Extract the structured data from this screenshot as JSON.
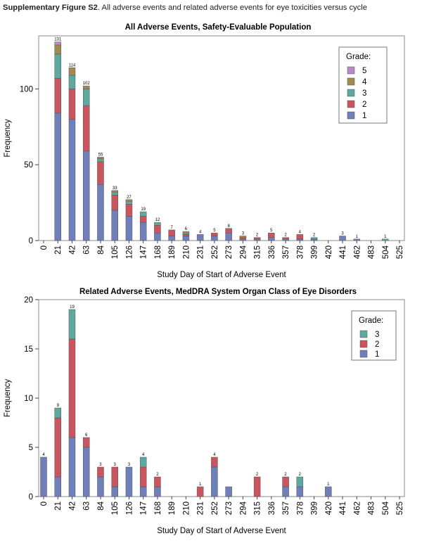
{
  "caption": {
    "label": "Supplementary Figure S2",
    "text": ". All adverse events and related adverse events for eye toxicities versus cycle"
  },
  "colors": {
    "grade1": "#6f7fba",
    "grade2": "#c9555e",
    "grade3": "#5fa8a0",
    "grade4": "#a38a52",
    "grade5": "#b98ac6"
  },
  "chart_data": [
    {
      "type": "bar",
      "stacked": true,
      "title": "All Adverse Events, Safety-Evaluable Population",
      "xlabel": "Study Day of Start of Adverse Event",
      "ylabel": "Frequency",
      "ylim": [
        0,
        135
      ],
      "yticks": [
        0,
        50,
        100
      ],
      "xticks": [
        "0",
        "21",
        "42",
        "63",
        "84",
        "105",
        "126",
        "147",
        "168",
        "189",
        "210",
        "231",
        "252",
        "273",
        "294",
        "315",
        "336",
        "357",
        "378",
        "399",
        "420",
        "441",
        "462",
        "483",
        "504",
        "525"
      ],
      "legend": {
        "title": "Grade:",
        "position": "top-right",
        "entries": [
          "5",
          "4",
          "3",
          "2",
          "1"
        ]
      },
      "categories": [
        "21",
        "42",
        "63",
        "84",
        "105",
        "126",
        "147",
        "168",
        "189",
        "210",
        "231",
        "252",
        "273",
        "294",
        "315",
        "336",
        "357",
        "378",
        "399",
        "420",
        "441",
        "462",
        "483",
        "504"
      ],
      "totals": [
        131,
        114,
        102,
        55,
        33,
        27,
        19,
        12,
        7,
        6,
        4,
        5,
        8,
        3,
        2,
        5,
        2,
        4,
        2,
        null,
        3,
        1,
        null,
        1
      ],
      "series": [
        {
          "name": "1",
          "color": "#6f7fba",
          "values": [
            84,
            80,
            59,
            37,
            20,
            16,
            12,
            5,
            3,
            3,
            4,
            3,
            5,
            1,
            1,
            2,
            1,
            1,
            1,
            0,
            3,
            1,
            0,
            0
          ]
        },
        {
          "name": "2",
          "color": "#c9555e",
          "values": [
            23,
            20,
            30,
            15,
            10,
            8,
            4,
            5,
            4,
            1,
            0,
            2,
            3,
            1,
            1,
            3,
            1,
            3,
            0,
            0,
            0,
            0,
            0,
            0
          ]
        },
        {
          "name": "3",
          "color": "#5fa8a0",
          "values": [
            16,
            9,
            11,
            2,
            2,
            2,
            3,
            2,
            0,
            1,
            0,
            0,
            0,
            0,
            0,
            0,
            0,
            0,
            1,
            0,
            0,
            0,
            0,
            1
          ]
        },
        {
          "name": "4",
          "color": "#a38a52",
          "values": [
            6,
            5,
            2,
            1,
            1,
            1,
            0,
            0,
            0,
            1,
            0,
            0,
            0,
            1,
            0,
            0,
            0,
            0,
            0,
            0,
            0,
            0,
            0,
            0
          ]
        },
        {
          "name": "5",
          "color": "#b98ac6",
          "values": [
            2,
            0,
            0,
            0,
            0,
            0,
            0,
            0,
            0,
            0,
            0,
            0,
            0,
            0,
            0,
            0,
            0,
            0,
            0,
            0,
            0,
            0,
            0,
            0
          ]
        }
      ]
    },
    {
      "type": "bar",
      "stacked": true,
      "title": "Related Adverse Events, MedDRA System Organ Class of Eye Disorders",
      "xlabel": "Study Day of Start of Adverse Event",
      "ylabel": "Frequency",
      "ylim": [
        0,
        20
      ],
      "yticks": [
        0,
        5,
        10,
        15,
        20
      ],
      "xticks": [
        "0",
        "21",
        "42",
        "63",
        "84",
        "105",
        "126",
        "147",
        "168",
        "189",
        "210",
        "231",
        "252",
        "273",
        "294",
        "315",
        "336",
        "357",
        "378",
        "399",
        "420",
        "441",
        "462",
        "483",
        "504",
        "525"
      ],
      "legend": {
        "title": "Grade:",
        "position": "top-right",
        "entries": [
          "3",
          "2",
          "1"
        ]
      },
      "categories": [
        "0",
        "21",
        "42",
        "63",
        "84",
        "105",
        "126",
        "147",
        "168",
        "189",
        "210",
        "231",
        "252",
        "273",
        "294",
        "315",
        "336",
        "357",
        "378",
        "399",
        "420",
        "441",
        "462",
        "483",
        "504",
        "525"
      ],
      "totals": [
        4,
        9,
        19,
        6,
        3,
        3,
        3,
        4,
        2,
        null,
        null,
        1,
        4,
        1,
        null,
        2,
        null,
        2,
        2,
        null,
        1,
        null,
        null,
        null,
        null,
        null
      ],
      "hide_total_labels_at": [
        13
      ],
      "series": [
        {
          "name": "1",
          "color": "#6f7fba",
          "values": [
            4,
            2,
            6,
            5,
            2,
            1,
            3,
            1,
            1,
            0,
            0,
            0,
            3,
            1,
            0,
            0,
            0,
            1,
            1,
            0,
            1,
            0,
            0,
            0,
            0,
            0
          ]
        },
        {
          "name": "2",
          "color": "#c9555e",
          "values": [
            0,
            6,
            10,
            1,
            1,
            2,
            0,
            2,
            1,
            0,
            0,
            1,
            1,
            0,
            0,
            2,
            0,
            1,
            0,
            0,
            0,
            0,
            0,
            0,
            0,
            0
          ]
        },
        {
          "name": "3",
          "color": "#5fa8a0",
          "values": [
            0,
            1,
            3,
            0,
            0,
            0,
            0,
            1,
            0,
            0,
            0,
            0,
            0,
            0,
            0,
            0,
            0,
            0,
            1,
            0,
            0,
            0,
            0,
            0,
            0,
            0
          ]
        }
      ]
    }
  ]
}
